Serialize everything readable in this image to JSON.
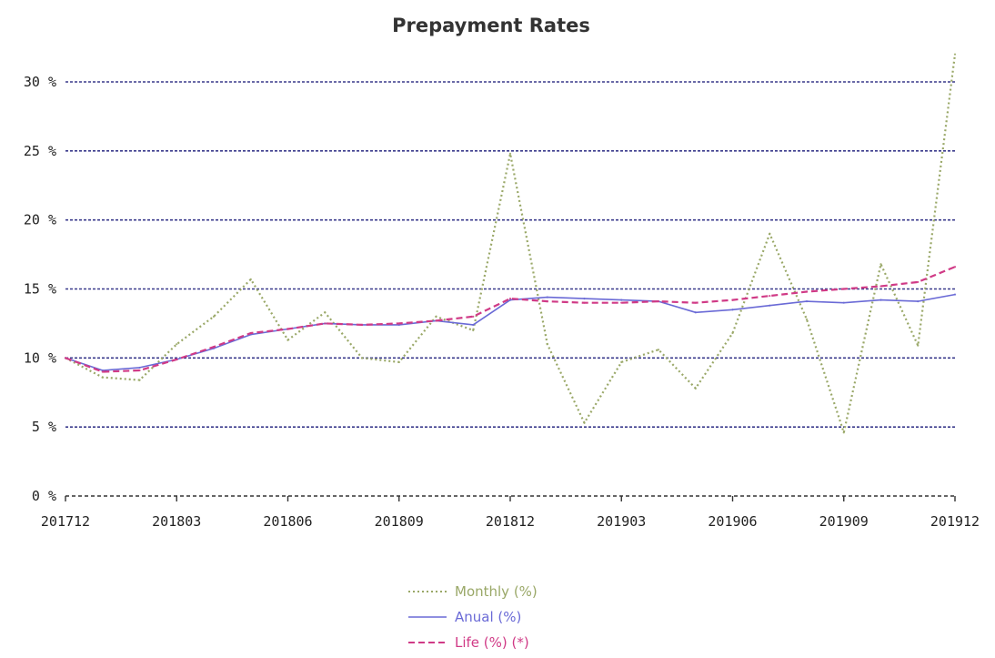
{
  "chart_data": {
    "type": "line",
    "title": "Prepayment Rates",
    "xlabel": "",
    "ylabel": "",
    "categories": [
      "201712",
      "201801",
      "201802",
      "201803",
      "201804",
      "201805",
      "201806",
      "201807",
      "201808",
      "201809",
      "201810",
      "201811",
      "201812",
      "201901",
      "201902",
      "201903",
      "201904",
      "201905",
      "201906",
      "201907",
      "201908",
      "201909",
      "201910",
      "201911",
      "201912"
    ],
    "x_tick_labels": [
      "201712",
      "201803",
      "201806",
      "201809",
      "201812",
      "201903",
      "201906",
      "201909",
      "201912"
    ],
    "y_tick_labels": [
      "0 %",
      "5 %",
      "10 %",
      "15 %",
      "20 %",
      "25 %",
      "30 %"
    ],
    "y_tick_values": [
      0,
      5,
      10,
      15,
      20,
      25,
      30
    ],
    "ylim": [
      0,
      32
    ],
    "grid": "horizontal dashed",
    "legend_position": "bottom-center",
    "series": [
      {
        "name": "Monthly (%)",
        "style": "dotted",
        "color": "#9aa868",
        "values": [
          10.0,
          8.6,
          8.4,
          11.0,
          13.0,
          15.7,
          11.3,
          13.3,
          10.0,
          9.7,
          13.0,
          12.0,
          24.8,
          11.0,
          5.3,
          9.7,
          10.6,
          7.8,
          11.8,
          19.0,
          12.8,
          4.6,
          16.8,
          10.9,
          32.0
        ]
      },
      {
        "name": "Anual (%)",
        "style": "solid",
        "color": "#6a6ad6",
        "values": [
          10.0,
          9.1,
          9.3,
          9.9,
          10.7,
          11.7,
          12.1,
          12.5,
          12.4,
          12.4,
          12.7,
          12.4,
          14.2,
          14.4,
          14.3,
          14.2,
          14.1,
          13.3,
          13.5,
          13.8,
          14.1,
          14.0,
          14.2,
          14.1,
          14.6
        ]
      },
      {
        "name": "Life (%) (*)",
        "style": "dashed",
        "color": "#d03a86",
        "values": [
          10.0,
          9.0,
          9.1,
          9.9,
          10.8,
          11.8,
          12.1,
          12.5,
          12.4,
          12.5,
          12.7,
          13.0,
          14.3,
          14.1,
          14.0,
          14.0,
          14.1,
          14.0,
          14.2,
          14.5,
          14.8,
          15.0,
          15.2,
          15.5,
          16.6
        ]
      }
    ],
    "colors": {
      "grid": "#3a3a8c",
      "axis": "#333333"
    }
  }
}
